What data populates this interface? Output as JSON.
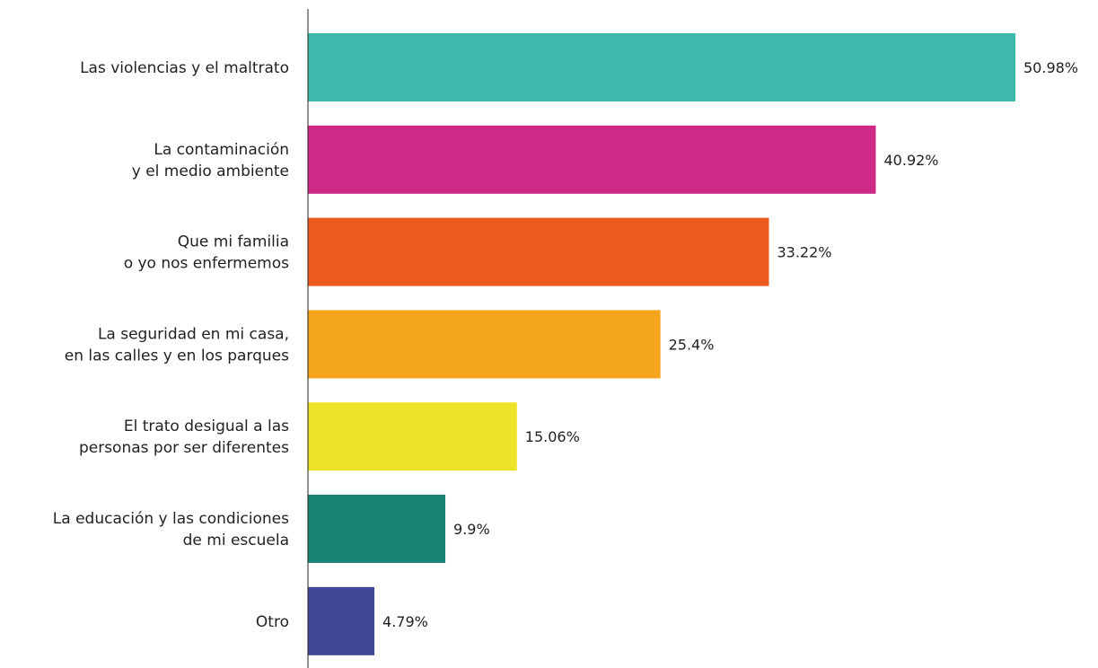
{
  "chart_data": {
    "type": "bar",
    "orientation": "horizontal",
    "title": "",
    "xlabel": "",
    "ylabel": "",
    "xlim": [
      0,
      52
    ],
    "grid": false,
    "legend": "none",
    "value_suffix": "%",
    "categories": [
      [
        "Las violencias y el maltrato"
      ],
      [
        "La contaminación",
        "y el medio ambiente"
      ],
      [
        "Que mi familia",
        "o yo nos enfermemos"
      ],
      [
        "La seguridad en mi casa,",
        "en las calles y en los parques"
      ],
      [
        "El trato desigual a las",
        "personas por ser diferentes"
      ],
      [
        "La educación y las condiciones",
        "de mi escuela"
      ],
      [
        "Otro"
      ]
    ],
    "values": [
      50.98,
      40.92,
      33.22,
      25.4,
      15.06,
      9.9,
      4.79
    ],
    "value_labels": [
      "50.98%",
      "40.92%",
      "33.22%",
      "25.4%",
      "15.06%",
      "9.9%",
      "4.79%"
    ],
    "colors": [
      "#3db8aa",
      "#cc2a86",
      "#eb5b1e",
      "#f4a51b",
      "#efe32a",
      "#198375",
      "#3f4897"
    ]
  }
}
